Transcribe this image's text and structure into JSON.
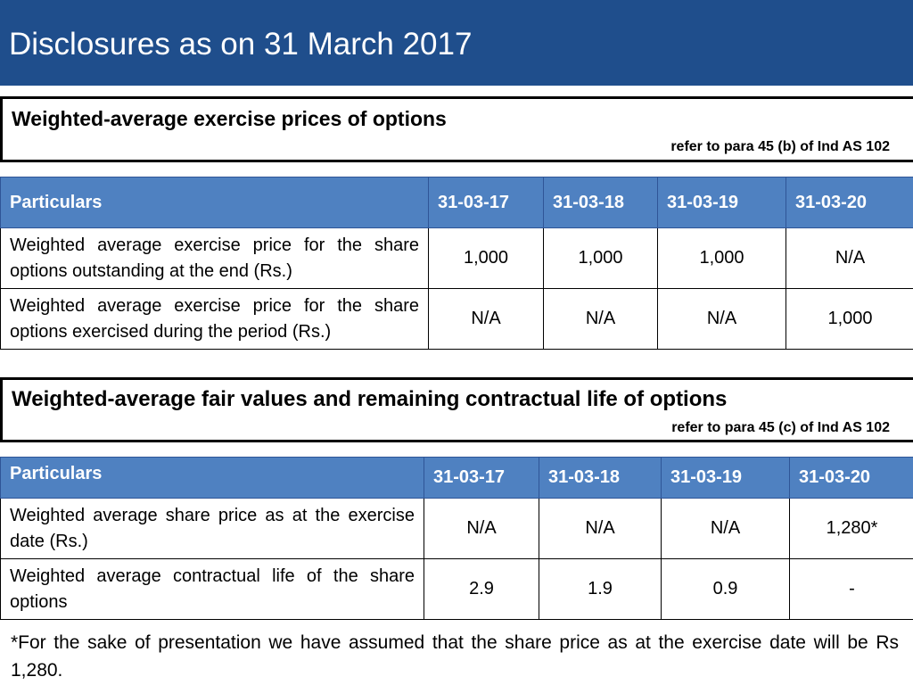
{
  "slide": {
    "title": "Disclosures as on 31 March 2017"
  },
  "section1": {
    "heading": "Weighted-average exercise prices of options",
    "reference": "refer to para 45 (b) of Ind AS 102",
    "table": {
      "headers": [
        "Particulars",
        "31-03-17",
        "31-03-18",
        "31-03-19",
        "31-03-20"
      ],
      "rows": [
        {
          "label": "Weighted average exercise price for the share options outstanding at the end (Rs.)",
          "values": [
            "1,000",
            "1,000",
            "1,000",
            "N/A"
          ]
        },
        {
          "label": "Weighted average exercise price for the share options exercised during the period (Rs.)",
          "values": [
            "N/A",
            "N/A",
            "N/A",
            "1,000"
          ]
        }
      ]
    }
  },
  "section2": {
    "heading": "Weighted-average fair values and remaining contractual life of options",
    "reference": "refer to para 45 (c) of Ind AS 102",
    "table": {
      "headers": [
        "Particulars",
        "31-03-17",
        "31-03-18",
        "31-03-19",
        "31-03-20"
      ],
      "rows": [
        {
          "label": "Weighted average share price as at the exercise date (Rs.)",
          "values": [
            "N/A",
            "N/A",
            "N/A",
            "1,280*"
          ]
        },
        {
          "label": "Weighted average contractual life of the share options",
          "values": [
            "2.9",
            "1.9",
            "0.9",
            "-"
          ]
        }
      ]
    }
  },
  "footnote": "*For the sake of presentation we have assumed that the share price as at the exercise date will be Rs 1,280.",
  "colors": {
    "title_bar": "#1f4e8c",
    "table_header": "#4f81c1"
  }
}
